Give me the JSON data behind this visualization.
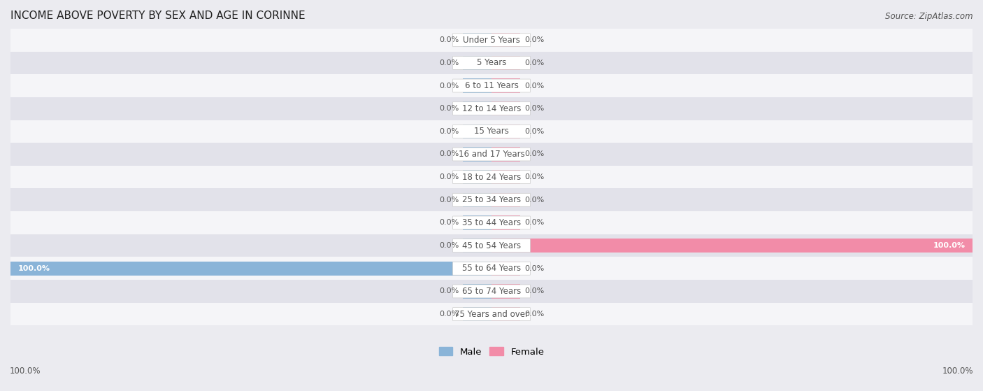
{
  "title": "INCOME ABOVE POVERTY BY SEX AND AGE IN CORINNE",
  "source": "Source: ZipAtlas.com",
  "categories": [
    "Under 5 Years",
    "5 Years",
    "6 to 11 Years",
    "12 to 14 Years",
    "15 Years",
    "16 and 17 Years",
    "18 to 24 Years",
    "25 to 34 Years",
    "35 to 44 Years",
    "45 to 54 Years",
    "55 to 64 Years",
    "65 to 74 Years",
    "75 Years and over"
  ],
  "male_values": [
    0.0,
    0.0,
    0.0,
    0.0,
    0.0,
    0.0,
    0.0,
    0.0,
    0.0,
    0.0,
    100.0,
    0.0,
    0.0
  ],
  "female_values": [
    0.0,
    0.0,
    0.0,
    0.0,
    0.0,
    0.0,
    0.0,
    0.0,
    0.0,
    100.0,
    0.0,
    0.0,
    0.0
  ],
  "male_color": "#8ab4d8",
  "female_color": "#f28ca8",
  "male_label": "Male",
  "female_label": "Female",
  "bg_color": "#ebebf0",
  "row_bg_light": "#f5f5f8",
  "row_bg_dark": "#e2e2ea",
  "text_color": "#555555",
  "title_color": "#222222",
  "xlim": 100.0,
  "stub_size": 6.0,
  "figsize": [
    14.06,
    5.59
  ],
  "dpi": 100,
  "label_fontsize": 8.0,
  "title_fontsize": 11,
  "source_fontsize": 8.5,
  "tick_fontsize": 8.5,
  "category_fontsize": 8.5
}
